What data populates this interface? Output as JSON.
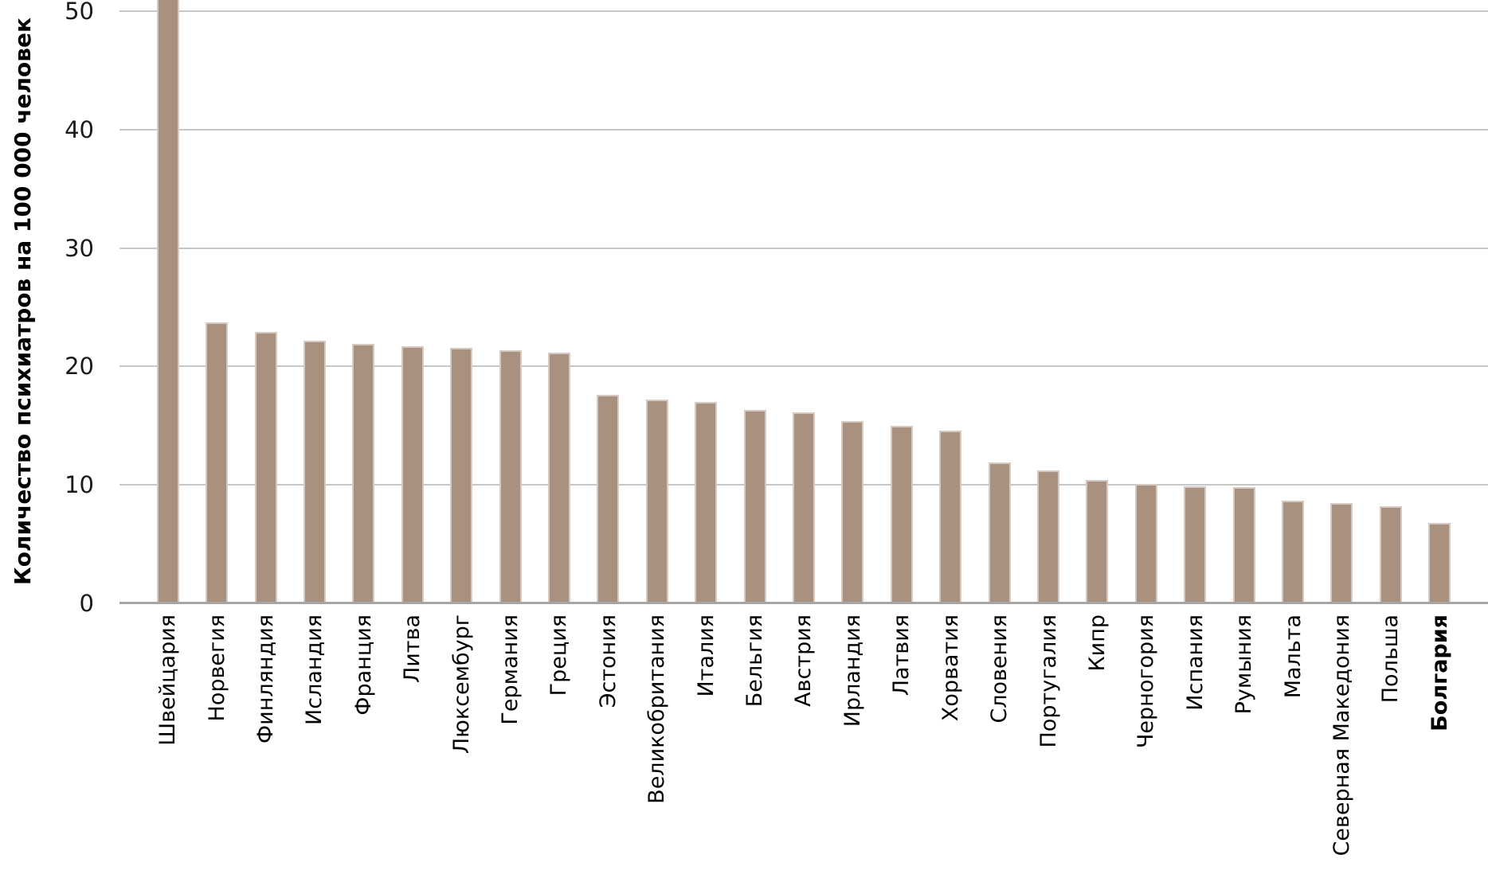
{
  "chart_data": {
    "type": "bar",
    "title": "",
    "ylabel": "Количество психиатров на 100 000 человек",
    "xlabel": "",
    "categories": [
      "Швейцария",
      "Норвегия",
      "Финляндия",
      "Исландия",
      "Франция",
      "Литва",
      "Люксембург",
      "Германия",
      "Греция",
      "Эстония",
      "Великобритания",
      "Италия",
      "Бельгия",
      "Австрия",
      "Ирландия",
      "Латвия",
      "Хорватия",
      "Словения",
      "Португалия",
      "Кипр",
      "Черногория",
      "Испания",
      "Румыния",
      "Мальта",
      "Северная Македония",
      "Польша",
      "Болгария"
    ],
    "values": [
      52,
      23.7,
      22.9,
      22.2,
      21.9,
      21.7,
      21.6,
      21.4,
      21.2,
      17.6,
      17.2,
      17.0,
      16.3,
      16.1,
      15.4,
      15.0,
      14.6,
      11.9,
      11.2,
      10.4,
      10.1,
      9.9,
      9.8,
      8.7,
      8.5,
      8.2,
      6.8
    ],
    "first_bar_clipped_at_axis_max": true,
    "highlight_category": "Болгария",
    "ylim": [
      0,
      50
    ],
    "yticks": [
      0,
      10,
      20,
      30,
      40,
      50
    ],
    "grid": "horizontal",
    "legend": "none",
    "bar_color": "#a99180",
    "bar_border_color": "#d5c9c1",
    "grid_color": "#c6c6c6",
    "axis_color": "#a6a6a6",
    "text_color": "#000000",
    "background_color": "#ffffff"
  }
}
